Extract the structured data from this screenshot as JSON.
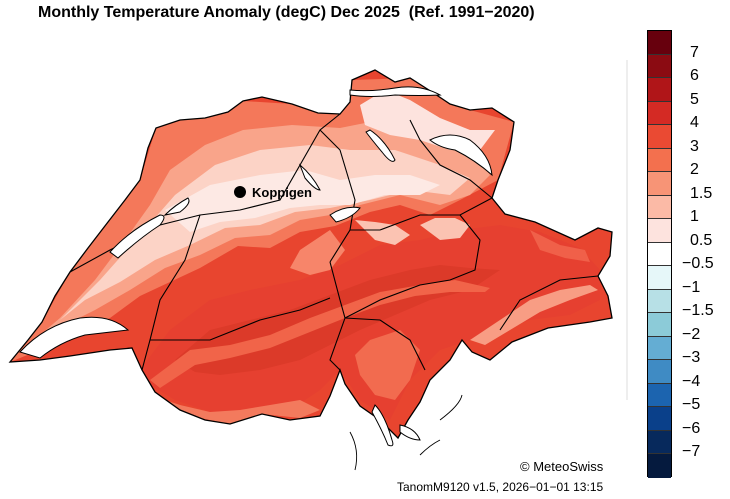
{
  "title": "Monthly Temperature Anomaly (degC) Dec 2025  (Ref. 1991−2020)",
  "station": {
    "name": "Koppigen"
  },
  "legend": {
    "entries": [
      {
        "label": "7",
        "color": "#67000d"
      },
      {
        "label": "6",
        "color": "#8b0b12"
      },
      {
        "label": "5",
        "color": "#b01518"
      },
      {
        "label": "4",
        "color": "#d42a24"
      },
      {
        "label": "3",
        "color": "#ea4a33"
      },
      {
        "label": "2",
        "color": "#f3704e"
      },
      {
        "label": "1.5",
        "color": "#f79476"
      },
      {
        "label": "1",
        "color": "#fbbaa6"
      },
      {
        "label": "0.5",
        "color": "#fde3de"
      },
      {
        "label": "−0.5",
        "color": "#ffffff"
      },
      {
        "label": "−1",
        "color": "#e6f7f9"
      },
      {
        "label": "−1.5",
        "color": "#b7e0e6"
      },
      {
        "label": "−2",
        "color": "#8ccbd8"
      },
      {
        "label": "−3",
        "color": "#64add3"
      },
      {
        "label": "−4",
        "color": "#3f8bc4"
      },
      {
        "label": "−5",
        "color": "#1c64af"
      },
      {
        "label": "−6",
        "color": "#0a408a"
      },
      {
        "label": "−7",
        "color": "#07295c"
      },
      {
        "label": "",
        "color": "#051a3e"
      }
    ]
  },
  "copyright": "© MeteoSwiss",
  "version": "TanomM9120 v1.5, 2026−01−01 13:15",
  "colors": {
    "ocean": "#ffffff",
    "border": "#000000",
    "lake": "#ffffff"
  }
}
